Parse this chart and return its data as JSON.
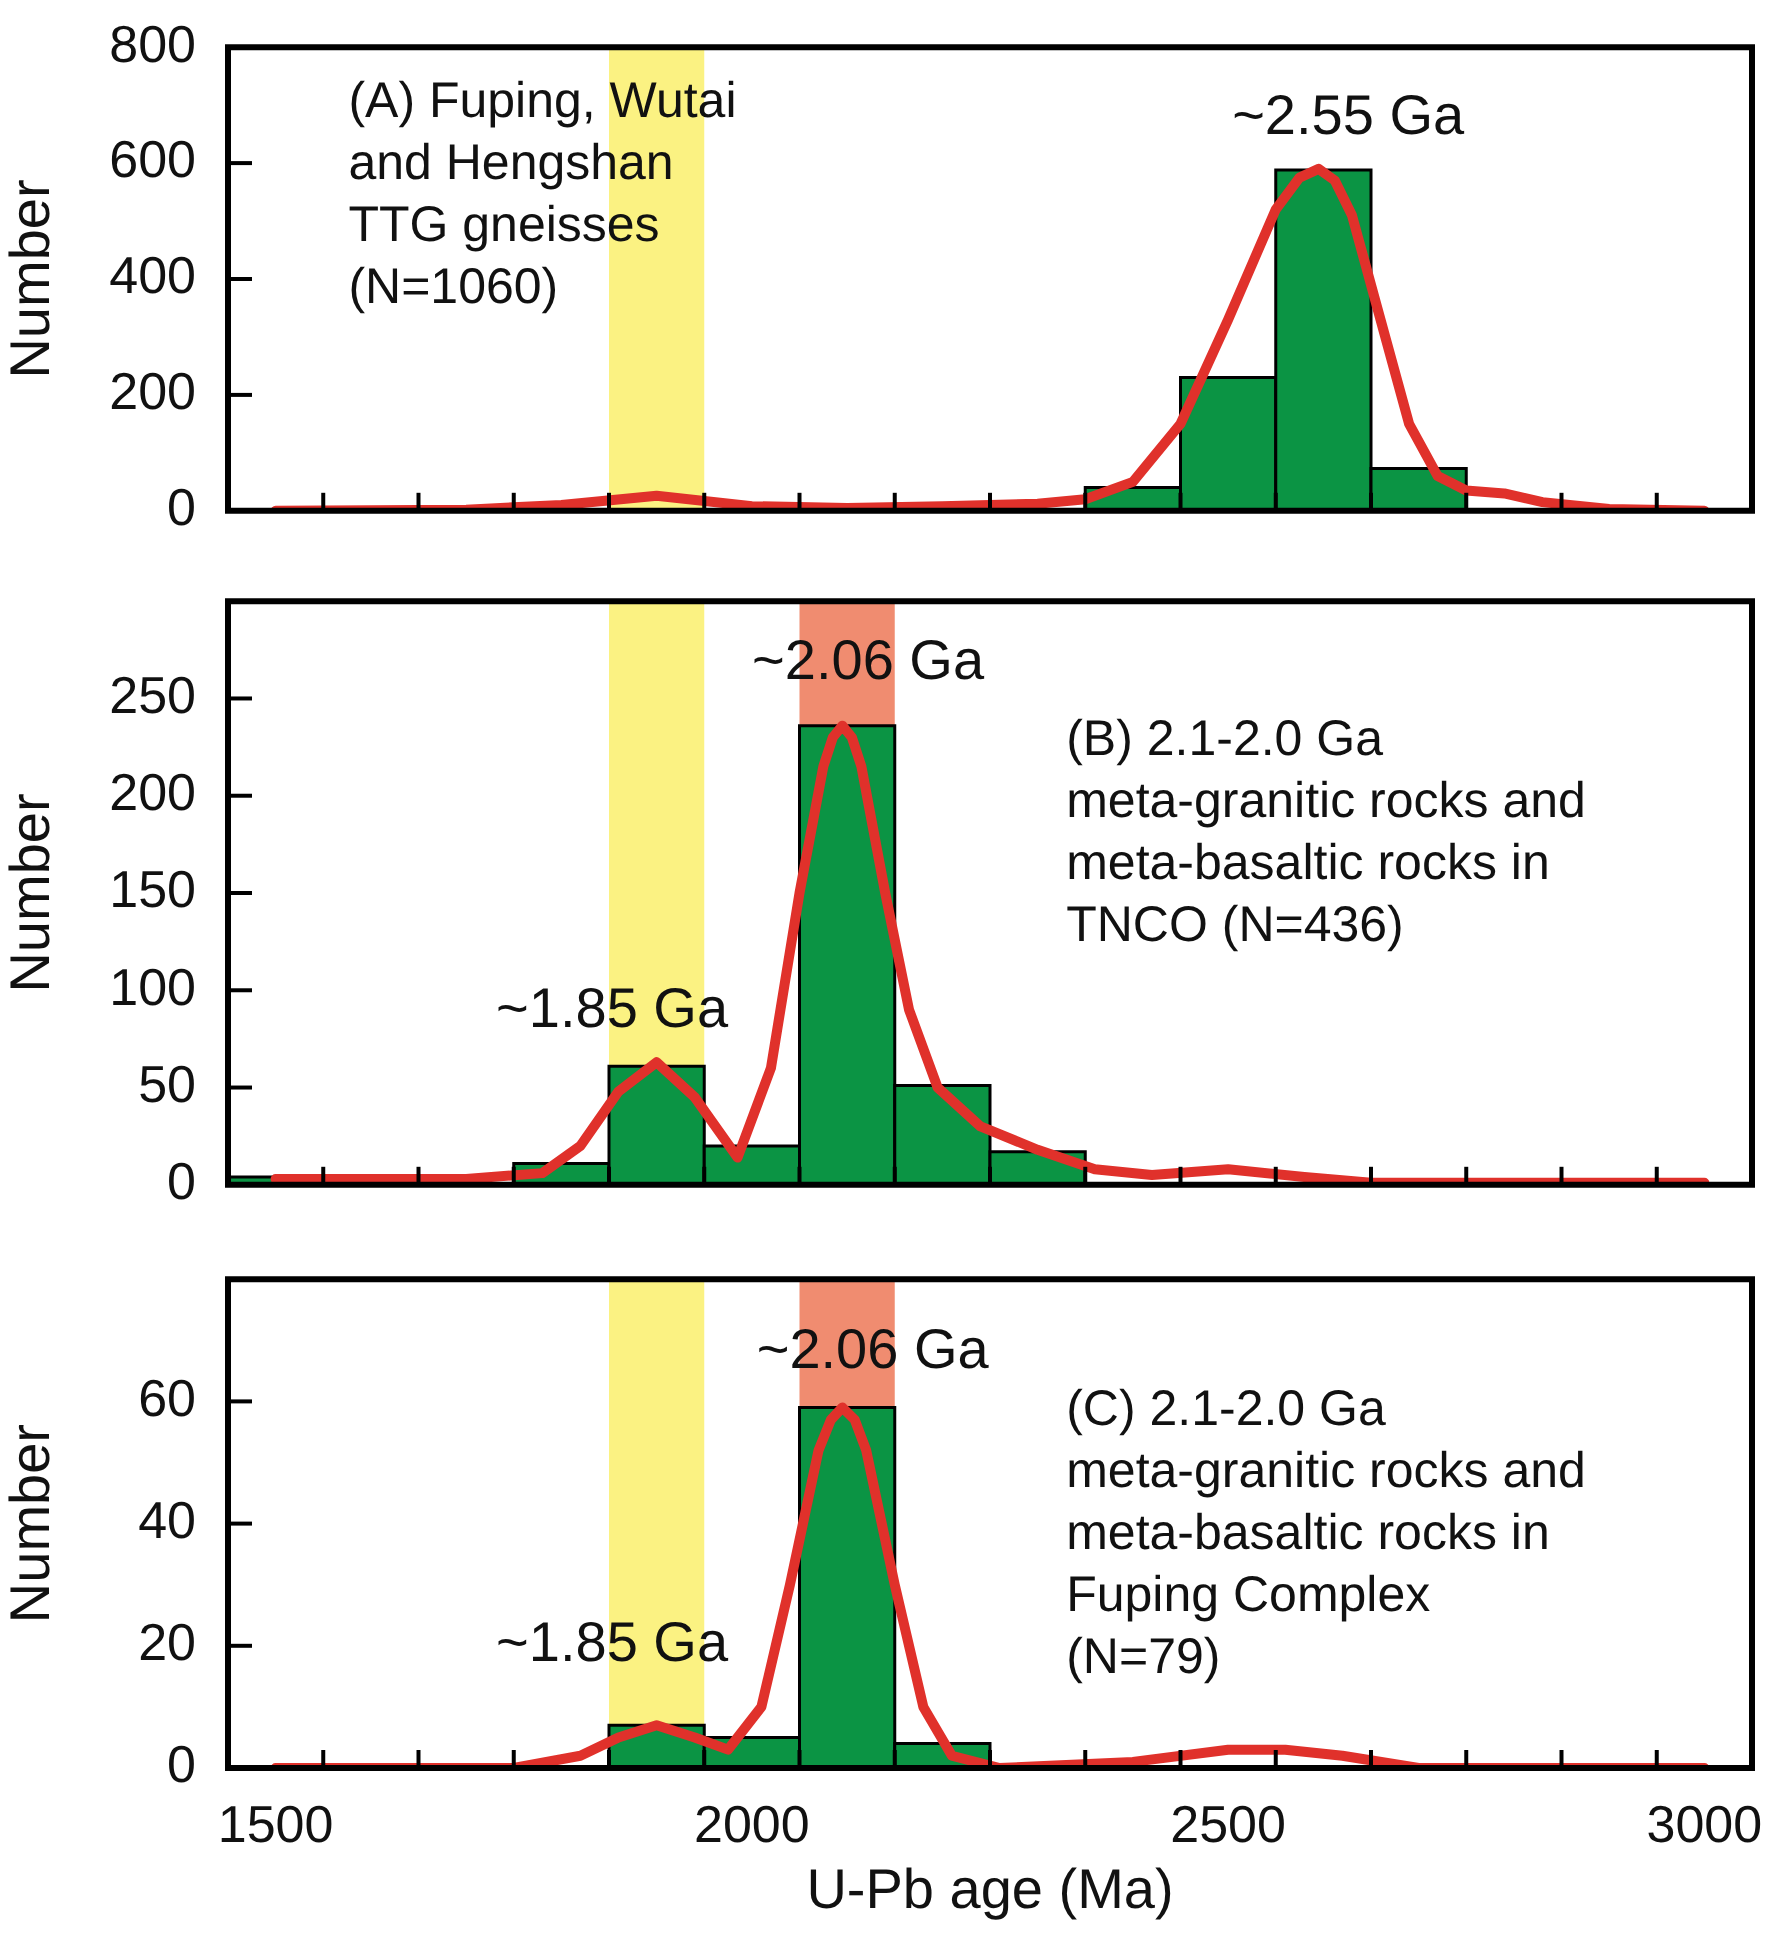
{
  "chart_data": [
    {
      "type": "histogram",
      "ylabel": "Number",
      "bins": [
        2350,
        2450,
        2550,
        2650,
        2750
      ],
      "values": [
        40,
        230,
        588,
        73
      ],
      "color": "#0b9444",
      "series": [
        {
          "type": "line",
          "color": "#e0312b",
          "x": [
            1500,
            1700,
            1800,
            1900,
            2000,
            2100,
            2200,
            2300,
            2350,
            2400,
            2450,
            2500,
            2550,
            2575,
            2595,
            2612,
            2630,
            2660,
            2690,
            2720,
            2750,
            2790,
            2830,
            2900,
            3000
          ],
          "values": [
            0,
            2,
            10,
            26,
            8,
            5,
            8,
            12,
            20,
            50,
            150,
            330,
            520,
            575,
            590,
            570,
            510,
            330,
            150,
            60,
            35,
            30,
            15,
            3,
            0
          ]
        }
      ],
      "marker": "none",
      "xlim": [
        1450,
        3050
      ],
      "xticks": [
        {
          "value": 1550,
          "label": null
        },
        {
          "value": 1650,
          "label": null
        },
        {
          "value": 1750,
          "label": null
        },
        {
          "value": 1850,
          "label": null
        },
        {
          "value": 1950,
          "label": null
        },
        {
          "value": 2050,
          "label": null
        },
        {
          "value": 2150,
          "label": null
        },
        {
          "value": 2250,
          "label": null
        },
        {
          "value": 2350,
          "label": null
        },
        {
          "value": 2450,
          "label": null
        },
        {
          "value": 2550,
          "label": null
        },
        {
          "value": 2650,
          "label": null
        },
        {
          "value": 2750,
          "label": null
        },
        {
          "value": 2850,
          "label": null
        },
        {
          "value": 2950,
          "label": null
        }
      ],
      "ylim": [
        0,
        800
      ],
      "yticks": [
        0,
        200,
        400,
        600,
        800
      ],
      "tick_labels": "y",
      "bands": [
        {
          "axis": "x",
          "from": 1850,
          "to": 1950,
          "color": "#fbf282"
        }
      ],
      "annotations": [
        "(A) Fuping, Wutai\nand Hengshan\nTTG gneisses\n(N=1060)",
        "~2.55 Ga"
      ]
    },
    {
      "type": "histogram",
      "ylabel": "Number",
      "bins": [
        1450,
        1550,
        1750,
        1850,
        1950,
        2050,
        2150,
        2250,
        2350
      ],
      "values": [
        4,
        null,
        11,
        61,
        20,
        236,
        51,
        17
      ],
      "color": "#0b9444",
      "series": [
        {
          "type": "line",
          "color": "#e0312b",
          "x": [
            1500,
            1700,
            1780,
            1820,
            1860,
            1900,
            1940,
            1985,
            2020,
            2050,
            2075,
            2085,
            2095,
            2105,
            2115,
            2140,
            2165,
            2195,
            2240,
            2300,
            2360,
            2420,
            2500,
            2580,
            2650,
            3000
          ],
          "values": [
            3,
            3,
            6,
            20,
            48,
            63,
            45,
            14,
            60,
            150,
            215,
            230,
            236,
            230,
            215,
            150,
            90,
            50,
            30,
            18,
            8,
            5,
            8,
            4,
            1,
            1
          ]
        }
      ],
      "marker": "none",
      "xlim": [
        1450,
        3050
      ],
      "xticks": [
        {
          "value": 1550,
          "label": null
        },
        {
          "value": 1650,
          "label": null
        },
        {
          "value": 1750,
          "label": null
        },
        {
          "value": 1850,
          "label": null
        },
        {
          "value": 1950,
          "label": null
        },
        {
          "value": 2050,
          "label": null
        },
        {
          "value": 2150,
          "label": null
        },
        {
          "value": 2250,
          "label": null
        },
        {
          "value": 2350,
          "label": null
        },
        {
          "value": 2450,
          "label": null
        },
        {
          "value": 2550,
          "label": null
        },
        {
          "value": 2650,
          "label": null
        },
        {
          "value": 2750,
          "label": null
        },
        {
          "value": 2850,
          "label": null
        },
        {
          "value": 2950,
          "label": null
        }
      ],
      "ylim": [
        0,
        300
      ],
      "yticks": [
        0,
        50,
        100,
        150,
        200,
        250
      ],
      "tick_labels": "y",
      "bands": [
        {
          "axis": "x",
          "from": 1850,
          "to": 1950,
          "color": "#fbf282"
        },
        {
          "axis": "x",
          "from": 2050,
          "to": 2150,
          "color": "#f08c70"
        }
      ],
      "annotations": [
        "(B) 2.1-2.0 Ga\nmeta-granitic rocks and\nmeta-basaltic rocks in\nTNCO (N=436)",
        "~2.06 Ga",
        "~1.85 Ga"
      ]
    },
    {
      "type": "histogram",
      "ylabel": "Number",
      "xlabel": "U-Pb age (Ma)",
      "bins": [
        1850,
        1950,
        2050,
        2150,
        2250
      ],
      "values": [
        7,
        5,
        59,
        4
      ],
      "color": "#0b9444",
      "series": [
        {
          "type": "line",
          "color": "#e0312b",
          "x": [
            1500,
            1750,
            1820,
            1860,
            1900,
            1940,
            1975,
            2010,
            2040,
            2070,
            2083,
            2095,
            2108,
            2120,
            2150,
            2180,
            2210,
            2260,
            2400,
            2500,
            2560,
            2620,
            2700,
            3000
          ],
          "values": [
            0,
            0,
            2,
            5,
            7,
            5,
            3,
            10,
            30,
            52,
            57,
            59,
            57,
            52,
            30,
            10,
            2,
            0,
            1,
            3,
            3,
            2,
            0,
            0
          ]
        }
      ],
      "marker": "none",
      "xlim": [
        1450,
        3050
      ],
      "xticks": [
        1500,
        {
          "value": 1550,
          "label": null
        },
        {
          "value": 1650,
          "label": null
        },
        {
          "value": 1750,
          "label": null
        },
        {
          "value": 1850,
          "label": null
        },
        {
          "value": 1950,
          "label": null
        },
        2000,
        {
          "value": 2050,
          "label": null
        },
        {
          "value": 2150,
          "label": null
        },
        {
          "value": 2250,
          "label": null
        },
        {
          "value": 2350,
          "label": null
        },
        {
          "value": 2450,
          "label": null
        },
        2500,
        {
          "value": 2550,
          "label": null
        },
        {
          "value": 2650,
          "label": null
        },
        {
          "value": 2750,
          "label": null
        },
        {
          "value": 2850,
          "label": null
        },
        {
          "value": 2950,
          "label": null
        },
        3000
      ],
      "ylim": [
        0,
        80
      ],
      "yticks": [
        0,
        20,
        40,
        60
      ],
      "bands": [
        {
          "axis": "x",
          "from": 1850,
          "to": 1950,
          "color": "#fbf282"
        },
        {
          "axis": "x",
          "from": 2050,
          "to": 2150,
          "color": "#f08c70"
        }
      ],
      "annotations": [
        "(C) 2.1-2.0 Ga\nmeta-granitic rocks and\nmeta-basaltic rocks in\nFuping Complex\n(N=79)",
        "~2.06 Ga",
        "~1.85 Ga"
      ]
    }
  ]
}
